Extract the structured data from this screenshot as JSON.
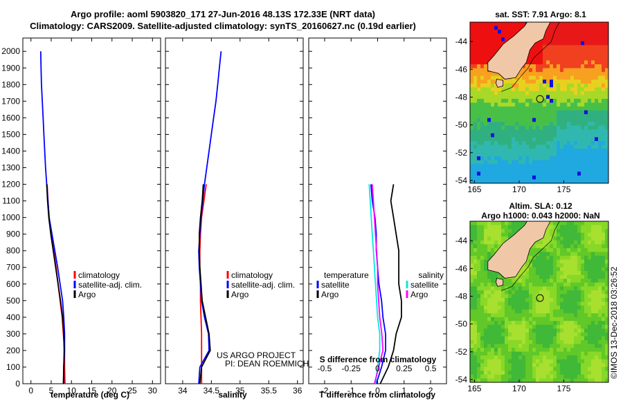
{
  "header": {
    "line1": "Argo profile: aoml 5903820_171 27-Jun-2016 48.13S 172.33E (NRT data)",
    "line2": "Climatology: CARS2009. Satellite-adjusted climatology: synTS_20160627.nc (0.19d earlier)"
  },
  "colors": {
    "climatology": "#ff0000",
    "satellite": "#0000ff",
    "argo": "#000000",
    "sat_salinity": "#00e8e8",
    "argo_salinity": "#ff00ff"
  },
  "footer": {
    "project": "US ARGO PROJECT",
    "pi": "PI: DEAN ROEMMICH",
    "stamp": "©IMOS 13-Dec-2018 03:26:52"
  },
  "chart_data": [
    {
      "type": "line",
      "name": "temperature",
      "xlabel": "temperature (deg C)",
      "ylabel": "",
      "xlim": [
        -2,
        32
      ],
      "ylim": [
        2080,
        0
      ],
      "xticks": [
        0,
        5,
        10,
        15,
        20,
        25,
        30
      ],
      "xtick_labels": [
        "0",
        "5",
        "10",
        "15",
        "20",
        "25",
        "30"
      ],
      "yticks": [
        0,
        100,
        200,
        300,
        400,
        500,
        600,
        700,
        800,
        900,
        1000,
        1100,
        1200,
        1300,
        1400,
        1500,
        1600,
        1700,
        1800,
        1900,
        2000
      ],
      "legend": {
        "placement": "lower-right",
        "entries": [
          "climatology",
          "satellite-adj. clim.",
          "Argo"
        ]
      },
      "series": [
        {
          "name": "climatology",
          "x": [
            8.4,
            8.3,
            8.3,
            8.0,
            7.7,
            7.2,
            6.7,
            6.2,
            5.6,
            5.0,
            4.5,
            4.2,
            4.0
          ],
          "y": [
            0,
            100,
            200,
            300,
            400,
            500,
            600,
            700,
            800,
            900,
            1000,
            1100,
            1200
          ]
        },
        {
          "name": "satellite-adj. clim.",
          "x": [
            8.1,
            8.1,
            8.3,
            8.3,
            8.1,
            7.8,
            7.2,
            6.6,
            5.9,
            5.2,
            4.5,
            4.2,
            3.9,
            3.6,
            3.4,
            3.2,
            3.0,
            2.8,
            2.6,
            2.5,
            2.4
          ],
          "y": [
            0,
            100,
            200,
            300,
            400,
            500,
            600,
            700,
            800,
            900,
            1000,
            1100,
            1200,
            1300,
            1400,
            1500,
            1600,
            1700,
            1800,
            1900,
            2000
          ]
        },
        {
          "name": "Argo",
          "x": [
            8.0,
            8.1,
            8.2,
            8.1,
            7.8,
            7.3,
            6.7,
            6.1,
            5.5,
            4.9,
            4.4,
            4.1,
            3.9
          ],
          "y": [
            0,
            100,
            200,
            300,
            400,
            500,
            600,
            700,
            800,
            900,
            1000,
            1100,
            1200
          ]
        }
      ]
    },
    {
      "type": "line",
      "name": "salinity",
      "xlabel": "salinity",
      "xlim": [
        33.7,
        36.1
      ],
      "ylim": [
        2080,
        0
      ],
      "xticks": [
        34,
        34.5,
        35,
        35.5,
        36
      ],
      "xtick_labels": [
        "34",
        "34.5",
        "35",
        "35.5",
        "36"
      ],
      "legend": {
        "placement": "lower-right",
        "entries": [
          "climatology",
          "satellite-adj. clim.",
          "Argo"
        ]
      },
      "series": [
        {
          "name": "climatology",
          "x": [
            34.33,
            34.33,
            34.33,
            34.33,
            34.32,
            34.31,
            34.31,
            34.3,
            34.3,
            34.31,
            34.33,
            34.37,
            34.41
          ],
          "y": [
            0,
            100,
            200,
            300,
            400,
            500,
            600,
            700,
            800,
            900,
            1000,
            1100,
            1200
          ]
        },
        {
          "name": "satellite-adj. clim.",
          "x": [
            34.28,
            34.3,
            34.46,
            34.45,
            34.38,
            34.33,
            34.31,
            34.29,
            34.28,
            34.3,
            34.32,
            34.35,
            34.38,
            34.42,
            34.46,
            34.5,
            34.54,
            34.58,
            34.61,
            34.64,
            34.67
          ],
          "y": [
            0,
            100,
            200,
            300,
            400,
            500,
            600,
            700,
            800,
            900,
            1000,
            1100,
            1200,
            1300,
            1400,
            1500,
            1600,
            1700,
            1800,
            1900,
            2000
          ]
        },
        {
          "name": "Argo",
          "x": [
            34.3,
            34.33,
            34.48,
            34.46,
            34.4,
            34.34,
            34.32,
            34.3,
            34.29,
            34.29,
            34.31,
            34.34,
            34.36
          ],
          "y": [
            0,
            100,
            200,
            300,
            400,
            500,
            600,
            700,
            800,
            900,
            1000,
            1100,
            1200
          ]
        }
      ]
    },
    {
      "type": "line",
      "name": "difference from climatology",
      "xlabel": "T difference from climatology",
      "x2label": "S difference from climatology",
      "xlim": [
        -2.6,
        2.6
      ],
      "ylim": [
        2080,
        0
      ],
      "xticks": [
        -2,
        -1,
        0,
        1,
        2
      ],
      "xtick_labels": [
        "-2",
        "-1",
        "0",
        "1",
        "2"
      ],
      "x2_values": [
        -0.5,
        -0.25,
        0,
        0.25,
        0.5
      ],
      "x2tick_labels": [
        "-0.5",
        "-0.25",
        "0",
        "0.25",
        "0.5"
      ],
      "legend": {
        "placement": "lower",
        "temperature_heading": "temperature",
        "salinity_heading": "salinity",
        "temperature_entries": [
          "satellite",
          "Argo"
        ],
        "salinity_entries": [
          "satellite",
          "Argo"
        ]
      },
      "series": [
        {
          "name": "T satellite",
          "x": [
            -0.05,
            0.15,
            0.3,
            0.3,
            0.2,
            0.15,
            0.05,
            0.0,
            -0.05,
            -0.05,
            -0.1,
            -0.2,
            -0.25
          ],
          "y": [
            0,
            100,
            200,
            300,
            400,
            500,
            600,
            700,
            800,
            900,
            1000,
            1100,
            1200
          ]
        },
        {
          "name": "T Argo",
          "x": [
            0.1,
            0.4,
            0.6,
            0.7,
            0.9,
            0.9,
            0.8,
            0.8,
            0.8,
            0.7,
            0.6,
            0.5,
            0.6
          ],
          "y": [
            0,
            100,
            200,
            300,
            400,
            500,
            600,
            700,
            800,
            900,
            1000,
            1100,
            1200
          ]
        },
        {
          "name": "S satellite",
          "x": [
            -0.02,
            0.0,
            0.02,
            0.02,
            0.0,
            -0.01,
            -0.02,
            -0.03,
            -0.04,
            -0.05,
            -0.06,
            -0.07,
            -0.08
          ],
          "y": [
            0,
            100,
            200,
            300,
            400,
            500,
            600,
            700,
            800,
            900,
            1000,
            1100,
            1200
          ]
        },
        {
          "name": "S Argo",
          "x": [
            -0.03,
            0.01,
            0.05,
            0.04,
            0.02,
            0.01,
            0.0,
            0.0,
            -0.01,
            -0.02,
            -0.03,
            -0.04,
            -0.05
          ],
          "y": [
            0,
            100,
            200,
            300,
            400,
            500,
            600,
            700,
            800,
            900,
            1000,
            1100,
            1200
          ]
        }
      ]
    },
    {
      "type": "heatmap",
      "name": "sat. SST map",
      "title": "sat. SST: 7.91 Argo: 8.1",
      "xlim": [
        164.5,
        180
      ],
      "ylim": [
        -54.2,
        -42.6
      ],
      "xtick_labels": [
        "165",
        "170",
        "175"
      ],
      "xticks": [
        165,
        170,
        175
      ],
      "ytick_labels": [
        "-44",
        "-46",
        "-48",
        "-50",
        "-52",
        "-54"
      ],
      "yticks": [
        -44,
        -46,
        -48,
        -50,
        -52,
        -54
      ],
      "marker": {
        "lon": 172.33,
        "lat": -48.13
      }
    },
    {
      "type": "heatmap",
      "name": "SLA map",
      "title1": "Altim. SLA: 0.12",
      "title2": "Argo h1000: 0.043 h2000: NaN",
      "xlim": [
        164.5,
        180
      ],
      "ylim": [
        -54.2,
        -42.6
      ],
      "xtick_labels": [
        "165",
        "170",
        "175"
      ],
      "xticks": [
        165,
        170,
        175
      ],
      "ytick_labels": [
        "-44",
        "-46",
        "-48",
        "-50",
        "-52",
        "-54"
      ],
      "yticks": [
        -44,
        -46,
        -48,
        -50,
        -52,
        -54
      ],
      "marker": {
        "lon": 172.33,
        "lat": -48.13
      }
    }
  ]
}
